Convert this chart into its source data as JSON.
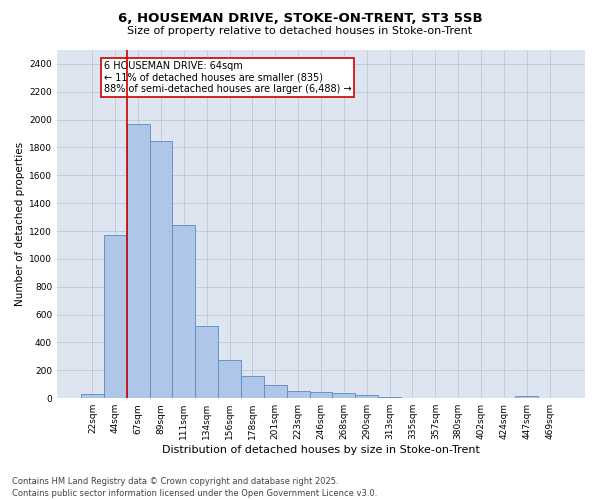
{
  "title_line1": "6, HOUSEMAN DRIVE, STOKE-ON-TRENT, ST3 5SB",
  "title_line2": "Size of property relative to detached houses in Stoke-on-Trent",
  "xlabel": "Distribution of detached houses by size in Stoke-on-Trent",
  "ylabel": "Number of detached properties",
  "bar_color": "#aec6e8",
  "bar_edge_color": "#5b8ac4",
  "background_color": "#dde5f0",
  "annotation_text": "6 HOUSEMAN DRIVE: 64sqm\n← 11% of detached houses are smaller (835)\n88% of semi-detached houses are larger (6,488) →",
  "vline_color": "#cc0000",
  "annotation_box_color": "#cc0000",
  "categories": [
    "22sqm",
    "44sqm",
    "67sqm",
    "89sqm",
    "111sqm",
    "134sqm",
    "156sqm",
    "178sqm",
    "201sqm",
    "223sqm",
    "246sqm",
    "268sqm",
    "290sqm",
    "313sqm",
    "335sqm",
    "357sqm",
    "380sqm",
    "402sqm",
    "424sqm",
    "447sqm",
    "469sqm"
  ],
  "values": [
    30,
    1175,
    1970,
    1850,
    1240,
    515,
    275,
    160,
    95,
    50,
    45,
    35,
    20,
    10,
    5,
    3,
    3,
    2,
    2,
    15,
    2
  ],
  "ylim": [
    0,
    2500
  ],
  "yticks": [
    0,
    200,
    400,
    600,
    800,
    1000,
    1200,
    1400,
    1600,
    1800,
    2000,
    2200,
    2400
  ],
  "footer": "Contains HM Land Registry data © Crown copyright and database right 2025.\nContains public sector information licensed under the Open Government Licence v3.0.",
  "grid_color": "#c0c8d8",
  "title_fontsize": 9.5,
  "subtitle_fontsize": 8,
  "ylabel_fontsize": 7.5,
  "xlabel_fontsize": 8,
  "tick_fontsize": 6.5,
  "annot_fontsize": 7,
  "footer_fontsize": 6
}
